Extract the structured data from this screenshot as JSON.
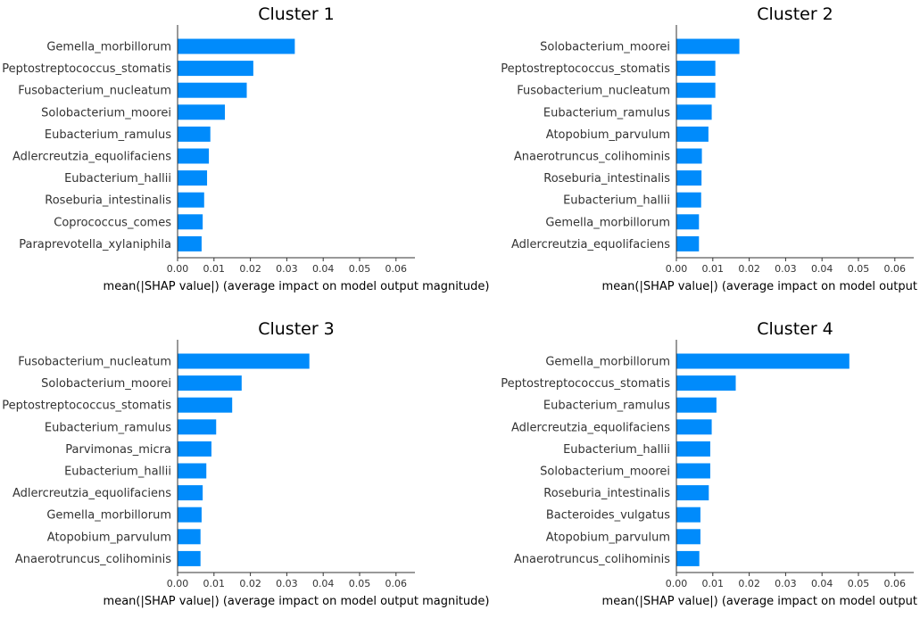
{
  "colors": {
    "bar": "#008bfb",
    "axis": "#333333",
    "text": "#333333"
  },
  "chart_data": [
    {
      "type": "bar",
      "orientation": "horizontal",
      "title": "Cluster 1",
      "xlabel": "mean(|SHAP value|) (average impact on model output magnitude)",
      "xlim": [
        0,
        0.065
      ],
      "xticks": [
        "0.00",
        "0.01",
        "0.02",
        "0.03",
        "0.04",
        "0.05",
        "0.06"
      ],
      "categories": [
        "Gemella_morbillorum",
        "Peptostreptococcus_stomatis",
        "Fusobacterium_nucleatum",
        "Solobacterium_moorei",
        "Eubacterium_ramulus",
        "Adlercreutzia_equolifaciens",
        "Eubacterium_hallii",
        "Roseburia_intestinalis",
        "Coprococcus_comes",
        "Paraprevotella_xylaniphila"
      ],
      "values": [
        0.0322,
        0.0208,
        0.019,
        0.013,
        0.009,
        0.0086,
        0.0081,
        0.0073,
        0.0069,
        0.0066
      ]
    },
    {
      "type": "bar",
      "orientation": "horizontal",
      "title": "Cluster 2",
      "xlabel": "mean(|SHAP value|) (average impact on model output magnitude)",
      "xlim": [
        0,
        0.065
      ],
      "xticks": [
        "0.00",
        "0.01",
        "0.02",
        "0.03",
        "0.04",
        "0.05",
        "0.06"
      ],
      "categories": [
        "Solobacterium_moorei",
        "Peptostreptococcus_stomatis",
        "Fusobacterium_nucleatum",
        "Eubacterium_ramulus",
        "Atopobium_parvulum",
        "Anaerotruncus_colihominis",
        "Roseburia_intestinalis",
        "Eubacterium_hallii",
        "Gemella_morbillorum",
        "Adlercreutzia_equolifaciens"
      ],
      "values": [
        0.0173,
        0.0107,
        0.0107,
        0.0097,
        0.0088,
        0.007,
        0.0069,
        0.0068,
        0.0062,
        0.0062
      ]
    },
    {
      "type": "bar",
      "orientation": "horizontal",
      "title": "Cluster 3",
      "xlabel": "mean(|SHAP value|) (average impact on model output magnitude)",
      "xlim": [
        0,
        0.065
      ],
      "xticks": [
        "0.00",
        "0.01",
        "0.02",
        "0.03",
        "0.04",
        "0.05",
        "0.06"
      ],
      "categories": [
        "Fusobacterium_nucleatum",
        "Solobacterium_moorei",
        "Peptostreptococcus_stomatis",
        "Eubacterium_ramulus",
        "Parvimonas_micra",
        "Eubacterium_hallii",
        "Adlercreutzia_equolifaciens",
        "Gemella_morbillorum",
        "Atopobium_parvulum",
        "Anaerotruncus_colihominis"
      ],
      "values": [
        0.0362,
        0.0176,
        0.015,
        0.0106,
        0.0093,
        0.0079,
        0.0069,
        0.0066,
        0.0063,
        0.0063
      ]
    },
    {
      "type": "bar",
      "orientation": "horizontal",
      "title": "Cluster 4",
      "xlabel": "mean(|SHAP value|) (average impact on model output magnitude)",
      "xlim": [
        0,
        0.065
      ],
      "xticks": [
        "0.00",
        "0.01",
        "0.02",
        "0.03",
        "0.04",
        "0.05",
        "0.06"
      ],
      "categories": [
        "Gemella_morbillorum",
        "Peptostreptococcus_stomatis",
        "Eubacterium_ramulus",
        "Adlercreutzia_equolifaciens",
        "Eubacterium_hallii",
        "Solobacterium_moorei",
        "Roseburia_intestinalis",
        "Bacteroides_vulgatus",
        "Atopobium_parvulum",
        "Anaerotruncus_colihominis"
      ],
      "values": [
        0.0475,
        0.0163,
        0.011,
        0.0097,
        0.0093,
        0.0093,
        0.0089,
        0.0066,
        0.0066,
        0.0063
      ]
    }
  ]
}
